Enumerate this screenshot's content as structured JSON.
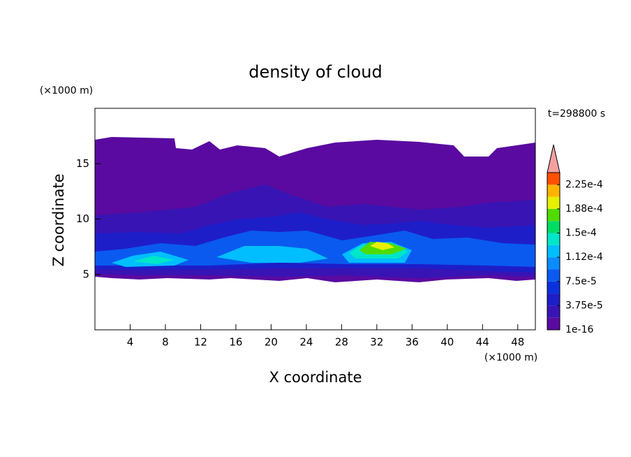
{
  "chart_data": {
    "type": "contour",
    "title": "density of cloud",
    "annotation": "t=298800 s",
    "x_label": "X coordinate",
    "y_label": "Z coordinate",
    "x_unit": "(×1000 m)",
    "y_unit": "(×1000 m)",
    "xlim": [
      0,
      50
    ],
    "xticks": [
      4,
      8,
      12,
      16,
      20,
      24,
      28,
      32,
      36,
      40,
      44,
      48
    ],
    "ylim": [
      0,
      20
    ],
    "yticks": [
      5,
      10,
      15
    ],
    "colorbar": {
      "lim": [
        1e-16,
        0.00024375
      ],
      "ticks": [
        1e-16,
        {
          "value": 3.75e-05,
          "label": "3.75e-5"
        },
        {
          "value": 7.5e-05,
          "label": "7.5e-5"
        },
        {
          "value": 0.0001125,
          "label": "1.12e-4"
        },
        {
          "value": 0.00015,
          "label": "1.5e-4"
        },
        {
          "value": 0.0001875,
          "label": "1.88e-4"
        },
        {
          "value": 0.000225,
          "label": "2.25e-4"
        }
      ],
      "colors": [
        "#5a0aa0",
        "#3814b4",
        "#1e1ec8",
        "#0a32dc",
        "#0a5af0",
        "#0a8cff",
        "#00beff",
        "#00e6c8",
        "#00dc64",
        "#50dc00",
        "#e6f000",
        "#ffb400",
        "#ff5000"
      ],
      "extend_color": "#f4a0a0"
    }
  }
}
